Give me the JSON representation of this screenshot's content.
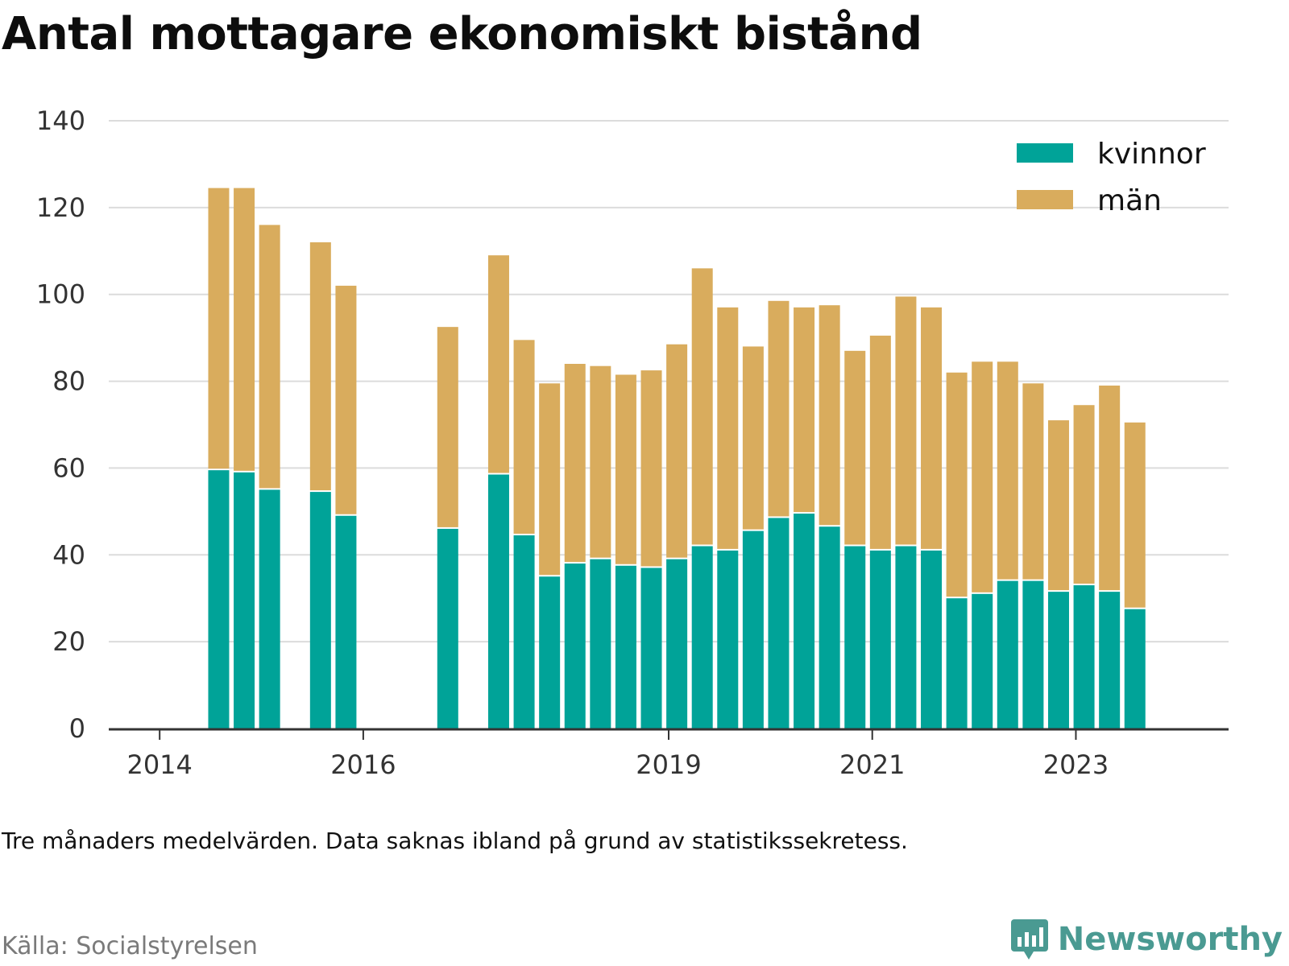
{
  "title": "Antal mottagare ekonomiskt bistånd",
  "note": "Tre månaders medelvärden. Data saknas ibland på grund av statistikssekretess.",
  "source": "Källa: Socialstyrelsen",
  "brand": {
    "name": "Newsworthy",
    "icon": "newsworthy-logo-icon",
    "color": "#4a9a92"
  },
  "chart_data": {
    "type": "bar",
    "stacked": true,
    "xlabel": "",
    "ylabel": "",
    "ylim": [
      0,
      140
    ],
    "yticks": [
      0,
      20,
      40,
      60,
      80,
      100,
      120,
      140
    ],
    "xticks": [
      {
        "label": "2014",
        "at": 2014.0
      },
      {
        "label": "2016",
        "at": 2016.0
      },
      {
        "label": "2019",
        "at": 2019.0
      },
      {
        "label": "2021",
        "at": 2021.0
      },
      {
        "label": "2023",
        "at": 2023.0
      }
    ],
    "xlim": [
      2013.5,
      2024.5
    ],
    "grid": true,
    "legend_position": "top-right",
    "x": [
      2014.58,
      2014.83,
      2015.08,
      2015.58,
      2015.83,
      2016.83,
      2017.33,
      2017.58,
      2017.83,
      2018.08,
      2018.33,
      2018.58,
      2018.83,
      2019.08,
      2019.33,
      2019.58,
      2019.83,
      2020.08,
      2020.33,
      2020.58,
      2020.83,
      2021.08,
      2021.33,
      2021.58,
      2021.83,
      2022.08,
      2022.33,
      2022.58,
      2022.83,
      2023.08,
      2023.33,
      2023.58
    ],
    "series": [
      {
        "name": "kvinnor",
        "color": "#00a398",
        "values": [
          59.5,
          59,
          55,
          54.5,
          49,
          46,
          58.5,
          44.5,
          35,
          38,
          39,
          37.5,
          37,
          39,
          42,
          41,
          45.5,
          48.5,
          49.5,
          46.5,
          42,
          41,
          42,
          41,
          30,
          31,
          34,
          34,
          31.5,
          33,
          31.5,
          27.5
        ]
      },
      {
        "name": "män",
        "color": "#d9ac5d",
        "values": [
          65,
          65.5,
          61,
          57.5,
          53,
          46.5,
          50.5,
          45,
          44.5,
          46,
          44.5,
          44,
          45.5,
          49.5,
          64,
          56,
          42.5,
          50,
          47.5,
          51,
          45,
          49.5,
          57.5,
          56,
          52,
          53.5,
          50.5,
          45.5,
          39.5,
          41.5,
          47.5,
          43
        ]
      }
    ]
  }
}
